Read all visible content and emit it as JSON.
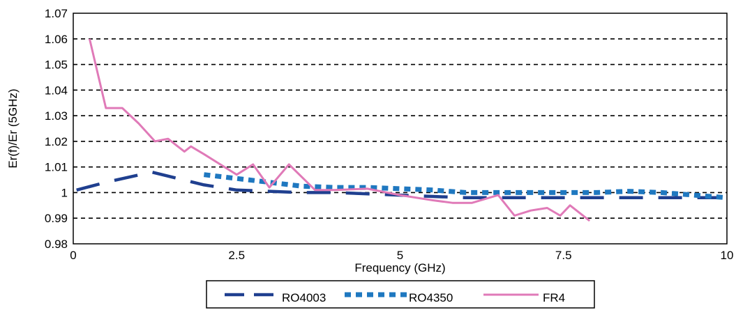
{
  "chart_data": {
    "type": "line",
    "title": "",
    "xlabel": "Frequency (GHz)",
    "ylabel": "Er(f)/Er (5GHz)",
    "xlim": [
      0,
      10
    ],
    "ylim": [
      0.98,
      1.07
    ],
    "x_ticks": [
      "0",
      "2.5",
      "5",
      "7.5",
      "10"
    ],
    "y_ticks": [
      "0.98",
      "0.99",
      "1",
      "1.01",
      "1.02",
      "1.03",
      "1.04",
      "1.05",
      "1.06",
      "1.07"
    ],
    "grid": "horizontal dashed",
    "legend_position": "bottom",
    "series": [
      {
        "name": "RO4003",
        "color": "#1f3f8f",
        "style": "long-dash",
        "x": [
          0.05,
          0.5,
          1.2,
          2.0,
          2.5,
          3.0,
          3.5,
          4.0,
          5.0,
          6.0,
          7.0,
          8.0,
          9.0,
          10.0
        ],
        "y": [
          1.001,
          1.004,
          1.008,
          1.003,
          1.001,
          1.0005,
          1.0,
          1.0,
          0.999,
          0.998,
          0.998,
          0.998,
          0.998,
          0.998
        ]
      },
      {
        "name": "RO4350",
        "color": "#1f78c0",
        "style": "dotted-block",
        "x": [
          2.0,
          2.5,
          3.0,
          3.5,
          4.0,
          4.5,
          5.0,
          5.5,
          6.0,
          6.5,
          7.0,
          7.5,
          8.0,
          8.5,
          9.0,
          9.5,
          10.0
        ],
        "y": [
          1.007,
          1.0055,
          1.004,
          1.0025,
          1.002,
          1.002,
          1.0015,
          1.001,
          1.0,
          1.0,
          1.0,
          1.0,
          1.0,
          1.0005,
          1.0,
          0.999,
          0.998
        ]
      },
      {
        "name": "FR4",
        "color": "#e07ab8",
        "style": "solid",
        "x": [
          0.25,
          0.5,
          0.75,
          1.0,
          1.25,
          1.45,
          1.7,
          1.8,
          2.0,
          2.25,
          2.5,
          2.75,
          3.0,
          3.3,
          3.7,
          4.0,
          4.5,
          5.0,
          5.5,
          5.8,
          6.1,
          6.5,
          6.75,
          7.0,
          7.25,
          7.45,
          7.6,
          7.9
        ],
        "y": [
          1.06,
          1.033,
          1.033,
          1.027,
          1.02,
          1.021,
          1.016,
          1.018,
          1.015,
          1.011,
          1.007,
          1.011,
          1.002,
          1.011,
          1.001,
          1.001,
          1.0015,
          0.999,
          0.997,
          0.996,
          0.996,
          0.999,
          0.991,
          0.993,
          0.994,
          0.991,
          0.995,
          0.989
        ]
      }
    ]
  }
}
